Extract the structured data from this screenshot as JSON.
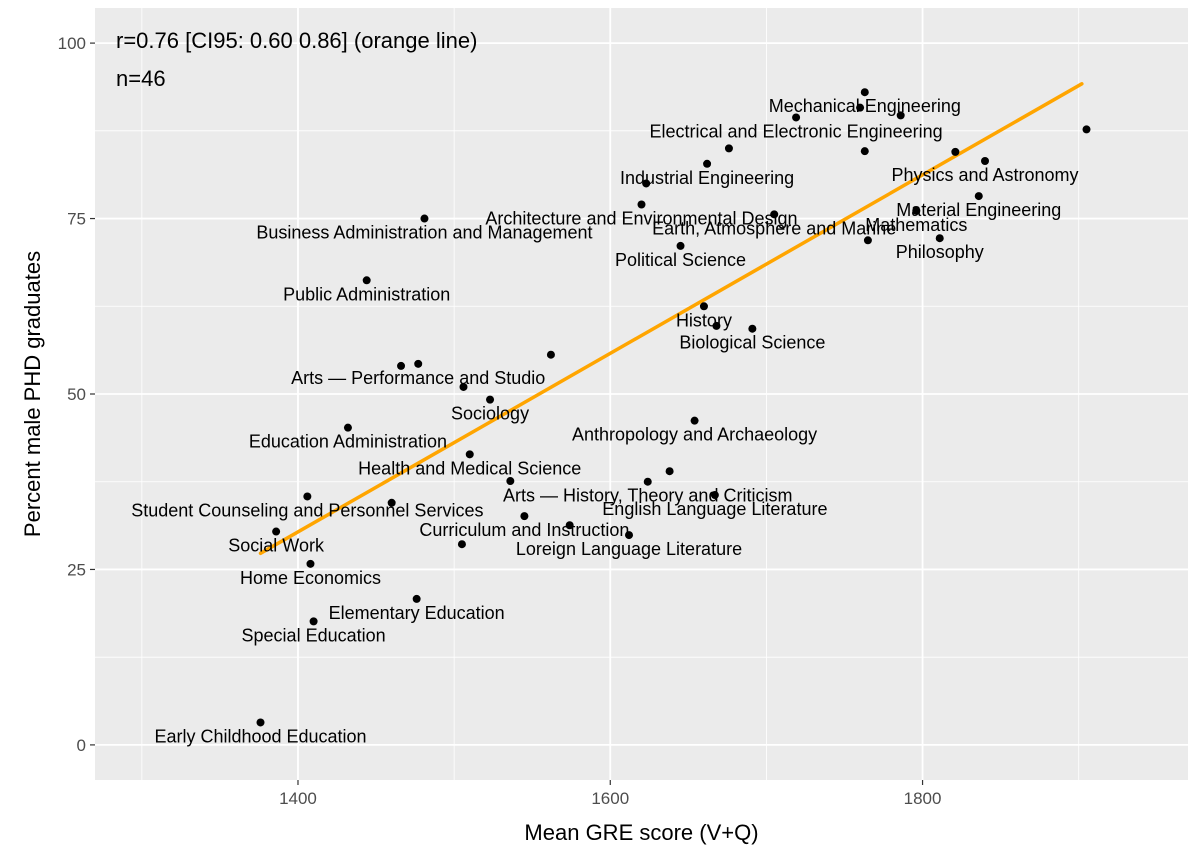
{
  "chart_data": {
    "type": "scatter",
    "xlabel": "Mean GRE score (V+Q)",
    "ylabel": "Percent male PHD graduates",
    "xlim": [
      1270,
      1970
    ],
    "ylim": [
      -5,
      105
    ],
    "x_ticks": [
      1400,
      1600,
      1800
    ],
    "y_ticks": [
      0,
      25,
      50,
      75,
      100
    ],
    "x_minor": [
      1300,
      1500,
      1700,
      1900
    ],
    "y_minor": [
      12.5,
      37.5,
      62.5,
      87.5
    ],
    "grid": true,
    "annotations": [
      "r=0.76 [CI95: 0.60 0.86] (orange line)",
      "n=46"
    ],
    "colors": {
      "panel": "#ebebeb",
      "grid": "#ffffff",
      "point": "#000000",
      "fit_line": "#ffa500"
    },
    "fit_line": {
      "x": [
        1376,
        1902
      ],
      "y": [
        27.3,
        94.2
      ]
    },
    "points": [
      {
        "x": 1376,
        "y": 3.2,
        "label": "Early Childhood Education"
      },
      {
        "x": 1410,
        "y": 17.6,
        "label": "Special Education"
      },
      {
        "x": 1476,
        "y": 20.8,
        "label": "Elementary Education"
      },
      {
        "x": 1408,
        "y": 25.8,
        "label": "Home Economics"
      },
      {
        "x": 1386,
        "y": 30.4,
        "label": "Social Work"
      },
      {
        "x": 1406,
        "y": 35.4,
        "label": "Student Counseling and Personnel Services"
      },
      {
        "x": 1460,
        "y": 34.5,
        "label": ""
      },
      {
        "x": 1432,
        "y": 45.2,
        "label": "Education Administration"
      },
      {
        "x": 1510,
        "y": 41.4,
        "label": "Health and Medical Science"
      },
      {
        "x": 1505,
        "y": 28.6,
        "label": ""
      },
      {
        "x": 1545,
        "y": 32.6,
        "label": "Curriculum and Instruction"
      },
      {
        "x": 1536,
        "y": 37.6,
        "label": ""
      },
      {
        "x": 1574,
        "y": 31.3,
        "label": ""
      },
      {
        "x": 1612,
        "y": 29.9,
        "label": "Loreign Language Literature"
      },
      {
        "x": 1624,
        "y": 37.5,
        "label": "Arts — History, Theory and Criticism"
      },
      {
        "x": 1638,
        "y": 39.0,
        "label": ""
      },
      {
        "x": 1667,
        "y": 35.6,
        "label": "English Language Literature"
      },
      {
        "x": 1523,
        "y": 49.2,
        "label": "Sociology"
      },
      {
        "x": 1506,
        "y": 51.0,
        "label": ""
      },
      {
        "x": 1466,
        "y": 54.0,
        "label": ""
      },
      {
        "x": 1477,
        "y": 54.3,
        "label": "Arts — Performance and Studio"
      },
      {
        "x": 1562,
        "y": 55.6,
        "label": ""
      },
      {
        "x": 1654,
        "y": 46.2,
        "label": "Anthropology and Archaeology"
      },
      {
        "x": 1444,
        "y": 66.2,
        "label": "Public Administration"
      },
      {
        "x": 1481,
        "y": 75.0,
        "label": "Business Administration and Management"
      },
      {
        "x": 1660,
        "y": 62.5,
        "label": "History"
      },
      {
        "x": 1668,
        "y": 59.7,
        "label": ""
      },
      {
        "x": 1691,
        "y": 59.3,
        "label": "Biological Science"
      },
      {
        "x": 1645,
        "y": 71.1,
        "label": "Political Science"
      },
      {
        "x": 1620,
        "y": 77.0,
        "label": "Architecture and Environmental Design"
      },
      {
        "x": 1623,
        "y": 80.0,
        "label": ""
      },
      {
        "x": 1705,
        "y": 75.6,
        "label": "Earth, Atmosphere and Marine"
      },
      {
        "x": 1765,
        "y": 71.9,
        "label": ""
      },
      {
        "x": 1662,
        "y": 82.8,
        "label": "Industrial Engineering"
      },
      {
        "x": 1676,
        "y": 85.0,
        "label": ""
      },
      {
        "x": 1719,
        "y": 89.4,
        "label": "Electrical and Electronic Engineering"
      },
      {
        "x": 1760,
        "y": 90.8,
        "label": ""
      },
      {
        "x": 1763,
        "y": 93.0,
        "label": "Mechanical Engineering"
      },
      {
        "x": 1786,
        "y": 89.7,
        "label": ""
      },
      {
        "x": 1763,
        "y": 84.6,
        "label": ""
      },
      {
        "x": 1811,
        "y": 72.2,
        "label": "Philosophy"
      },
      {
        "x": 1796,
        "y": 76.1,
        "label": "Mathematics"
      },
      {
        "x": 1836,
        "y": 78.2,
        "label": "Material Engineering"
      },
      {
        "x": 1821,
        "y": 84.5,
        "label": ""
      },
      {
        "x": 1840,
        "y": 83.2,
        "label": "Physics and Astronomy"
      },
      {
        "x": 1905,
        "y": 87.7,
        "label": ""
      }
    ]
  }
}
